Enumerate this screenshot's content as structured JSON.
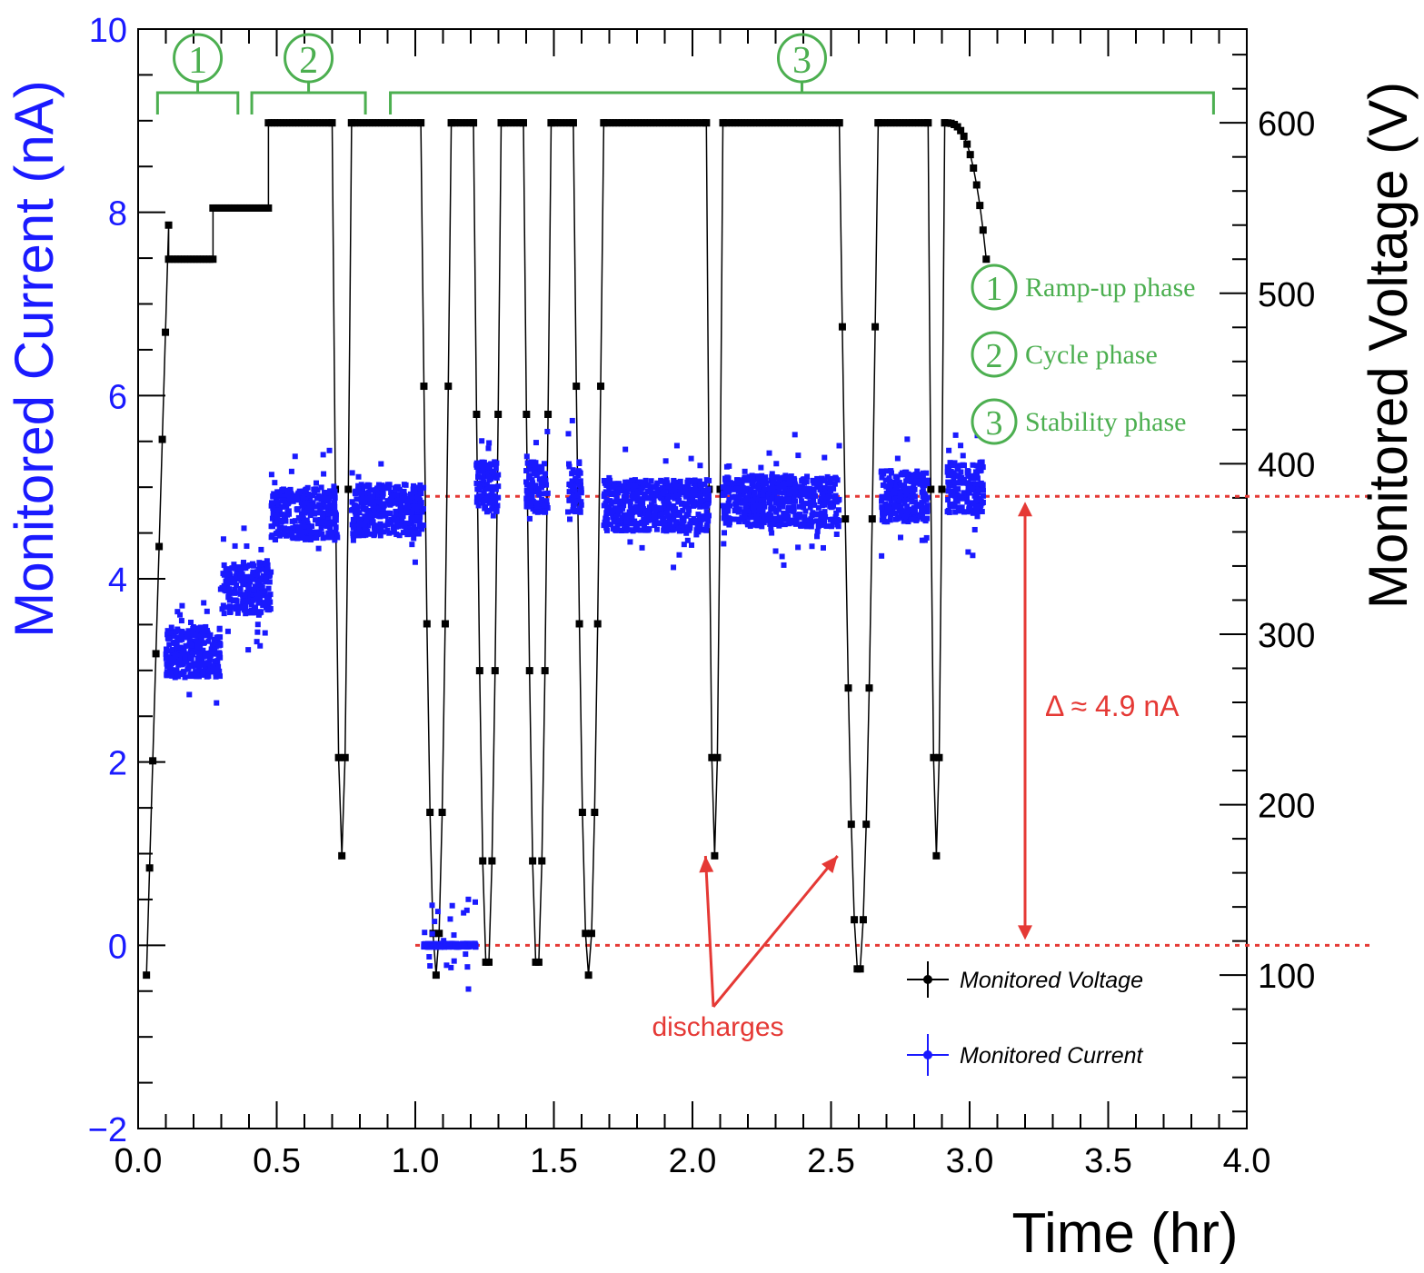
{
  "chart_data": {
    "type": "scatter",
    "title": "",
    "xlabel": "Time (hr)",
    "ylabel_left": "Monitored Current (nA)",
    "ylabel_right": "Monitored Voltage (V)",
    "xlim": [
      0.0,
      4.0
    ],
    "ylim_left": [
      -2,
      10
    ],
    "ylim_right": [
      10,
      655
    ],
    "x_ticks": [
      "0.0",
      "0.5",
      "1.0",
      "1.5",
      "2.0",
      "2.5",
      "3.0",
      "3.5",
      "4.0"
    ],
    "y_ticks_left": [
      "−2",
      "0",
      "2",
      "4",
      "6",
      "8",
      "10"
    ],
    "y_ticks_right": [
      "100",
      "200",
      "300",
      "400",
      "500",
      "600"
    ],
    "colors": {
      "voltage": "#000000",
      "current": "#1a1aff",
      "annotation": "#e53935",
      "phase": "#4caf50"
    },
    "series": [
      {
        "name": "Monitored Voltage",
        "axis": "right",
        "segments": [
          {
            "t0": 0.03,
            "t1": 0.11,
            "v": [
              100,
              540
            ]
          },
          {
            "t0": 0.11,
            "t1": 0.27,
            "v": [
              520,
              520
            ]
          },
          {
            "t0": 0.27,
            "t1": 0.47,
            "v": [
              550,
              550
            ]
          },
          {
            "t0": 0.47,
            "t1": 0.7,
            "v": [
              600,
              600
            ]
          },
          {
            "t0": 0.7,
            "t1": 0.77,
            "v": [
              170,
              600
            ]
          },
          {
            "t0": 0.77,
            "t1": 1.02,
            "v": [
              600,
              600
            ]
          },
          {
            "t0": 1.02,
            "t1": 1.13,
            "v": [
              100,
              600
            ]
          },
          {
            "t0": 1.13,
            "t1": 1.21,
            "v": [
              600,
              600
            ]
          },
          {
            "t0": 1.21,
            "t1": 1.31,
            "v": [
              100,
              600
            ]
          },
          {
            "t0": 1.31,
            "t1": 1.39,
            "v": [
              600,
              600
            ]
          },
          {
            "t0": 1.39,
            "t1": 1.49,
            "v": [
              100,
              600
            ]
          },
          {
            "t0": 1.49,
            "t1": 1.57,
            "v": [
              600,
              600
            ]
          },
          {
            "t0": 1.57,
            "t1": 1.68,
            "v": [
              100,
              600
            ]
          },
          {
            "t0": 1.68,
            "t1": 2.05,
            "v": [
              600,
              600
            ]
          },
          {
            "t0": 2.05,
            "t1": 2.11,
            "v": [
              170,
              600
            ]
          },
          {
            "t0": 2.11,
            "t1": 2.53,
            "v": [
              600,
              600
            ]
          },
          {
            "t0": 2.53,
            "t1": 2.67,
            "v": [
              100,
              600
            ]
          },
          {
            "t0": 2.67,
            "t1": 2.85,
            "v": [
              600,
              600
            ]
          },
          {
            "t0": 2.85,
            "t1": 2.91,
            "v": [
              170,
              600
            ]
          },
          {
            "t0": 2.91,
            "t1": 3.06,
            "v": [
              600,
              520
            ]
          }
        ]
      },
      {
        "name": "Monitored Current",
        "axis": "left",
        "levels": [
          {
            "t0": 0.1,
            "t1": 0.3,
            "i": 3.2
          },
          {
            "t0": 0.3,
            "t1": 0.48,
            "i": 3.9
          },
          {
            "t0": 0.48,
            "t1": 0.72,
            "i": 4.7
          },
          {
            "t0": 0.77,
            "t1": 1.03,
            "i": 4.75
          },
          {
            "t0": 1.03,
            "t1": 1.22,
            "i": 0.0
          },
          {
            "t0": 1.22,
            "t1": 1.3,
            "i": 5.0
          },
          {
            "t0": 1.4,
            "t1": 1.48,
            "i": 5.0
          },
          {
            "t0": 1.55,
            "t1": 1.6,
            "i": 5.0
          },
          {
            "t0": 1.68,
            "t1": 2.06,
            "i": 4.8
          },
          {
            "t0": 2.11,
            "t1": 2.53,
            "i": 4.85
          },
          {
            "t0": 2.68,
            "t1": 2.85,
            "i": 4.9
          },
          {
            "t0": 2.92,
            "t1": 3.05,
            "i": 5.0
          }
        ]
      }
    ],
    "legend": {
      "placement": "bottom-right",
      "entries": [
        "Monitored Voltage",
        "Monitored Current"
      ]
    },
    "phases": [
      {
        "label": "1",
        "name": "Ramp-up phase",
        "t0": 0.07,
        "t1": 0.36
      },
      {
        "label": "2",
        "name": "Cycle phase",
        "t0": 0.41,
        "t1": 0.82
      },
      {
        "label": "3",
        "name": "Stability phase",
        "t0": 0.91,
        "t1": 3.88
      }
    ],
    "annotations": {
      "delta": "Δ ≈ 4.9 nA",
      "delta_levels_nA": [
        0.0,
        4.9
      ],
      "discharges": "discharges",
      "discharge_times_hr": [
        2.07,
        2.53
      ]
    }
  }
}
